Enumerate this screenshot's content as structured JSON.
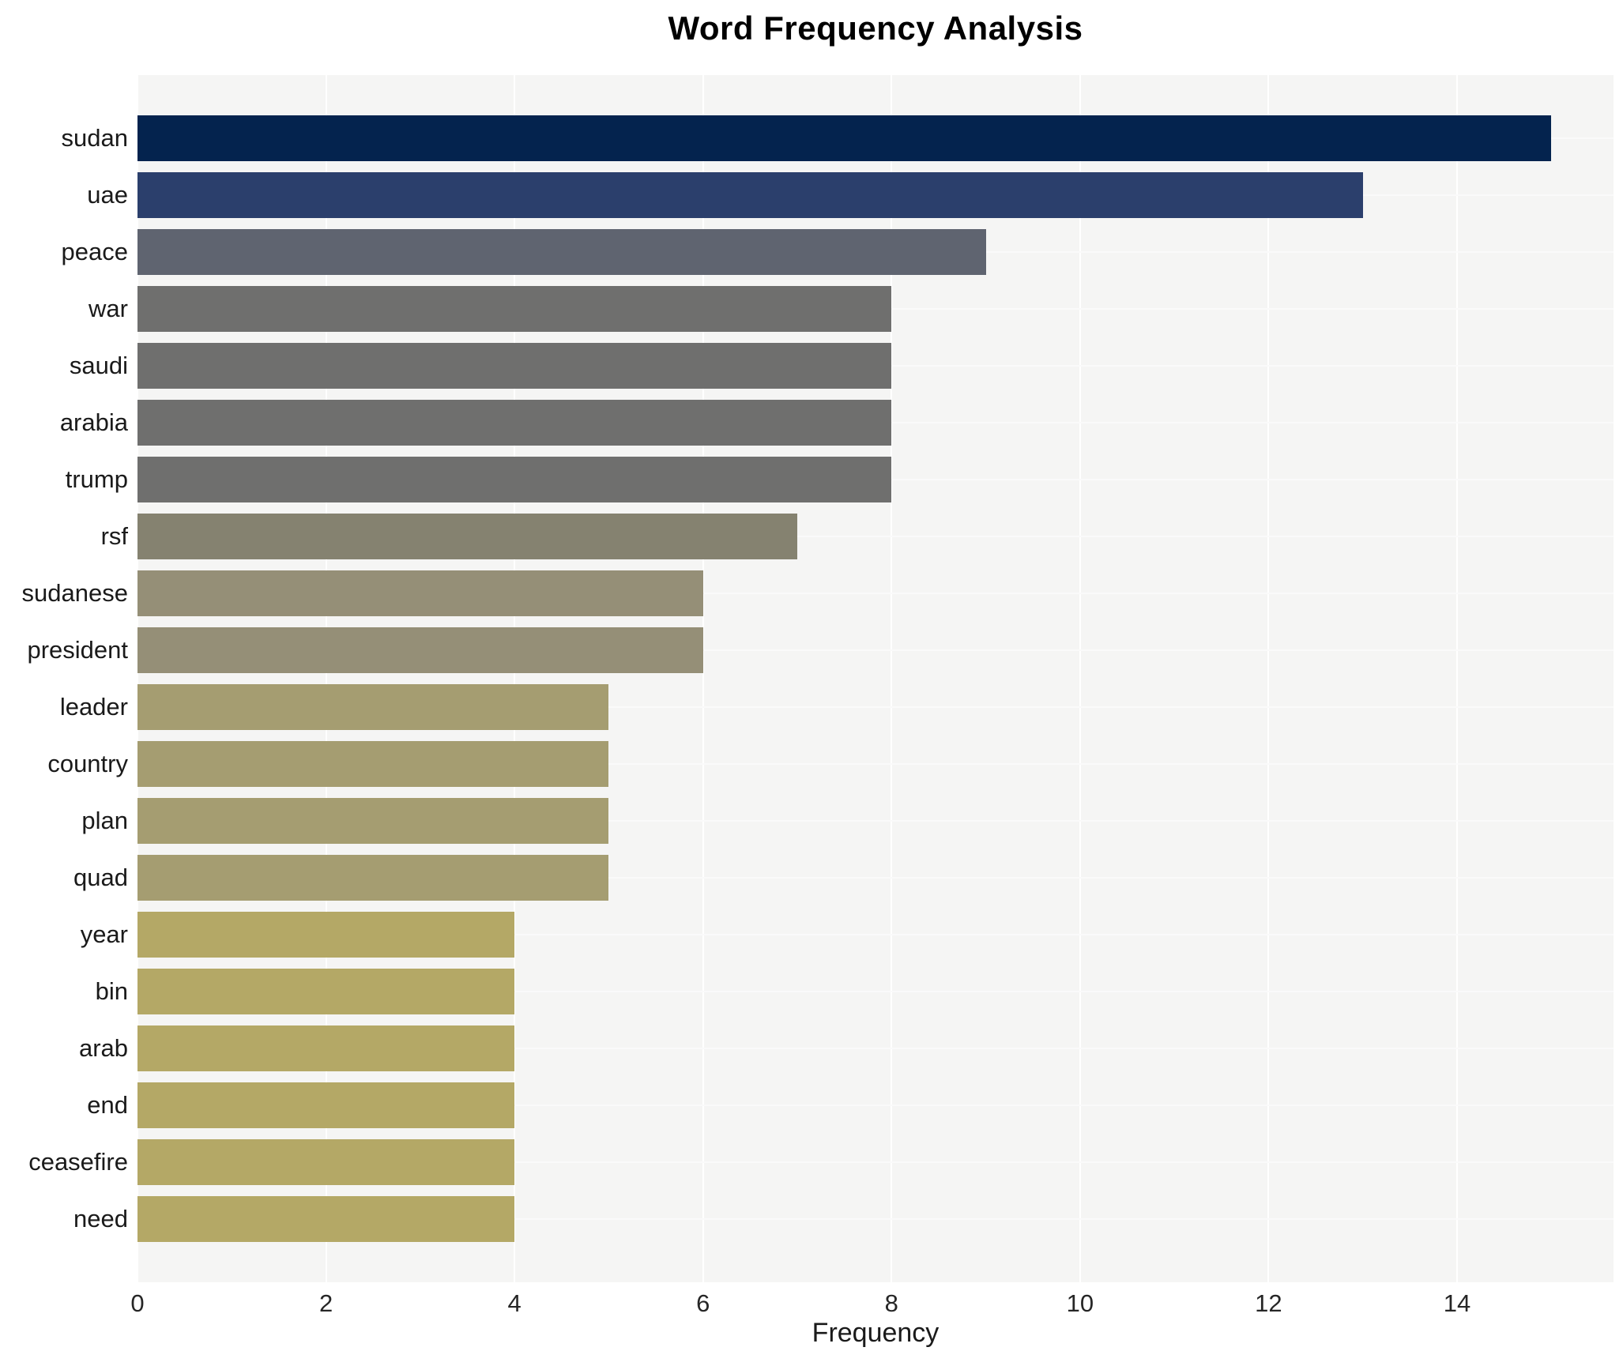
{
  "title": "Word Frequency Analysis",
  "chart_data": {
    "type": "bar",
    "orientation": "horizontal",
    "title": "Word Frequency Analysis",
    "xlabel": "Frequency",
    "ylabel": "",
    "xlim": [
      0,
      15.66
    ],
    "xticks": [
      0,
      2,
      4,
      6,
      8,
      10,
      12,
      14
    ],
    "grid": true,
    "legend": false,
    "plot_bg_color": "#f5f5f4",
    "grid_color": "#ffffff",
    "categories": [
      "sudan",
      "uae",
      "peace",
      "war",
      "saudi",
      "arabia",
      "trump",
      "rsf",
      "sudanese",
      "president",
      "leader",
      "country",
      "plan",
      "quad",
      "year",
      "bin",
      "arab",
      "end",
      "ceasefire",
      "need"
    ],
    "values": [
      15,
      13,
      9,
      8,
      8,
      8,
      8,
      7,
      6,
      6,
      5,
      5,
      5,
      5,
      4,
      4,
      4,
      4,
      4,
      4
    ],
    "bar_colors": [
      "#04234e",
      "#2b3f6c",
      "#5f6470",
      "#6f6f6e",
      "#6f6f6e",
      "#6f6f6e",
      "#6f6f6e",
      "#858270",
      "#958f77",
      "#958f77",
      "#a59d71",
      "#a59d71",
      "#a59d71",
      "#a59d71",
      "#b4a866",
      "#b4a866",
      "#b4a866",
      "#b4a866",
      "#b4a866",
      "#b4a866"
    ]
  }
}
